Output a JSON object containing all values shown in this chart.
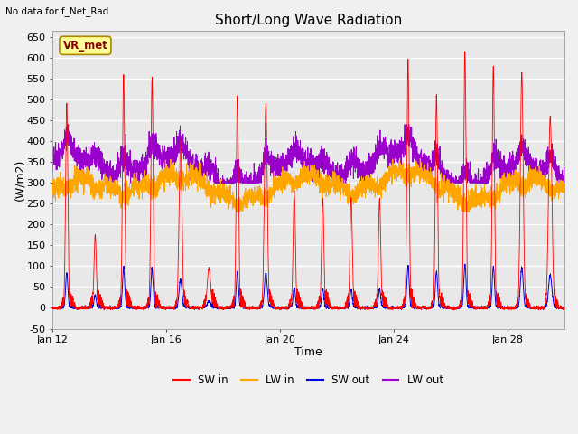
{
  "title": "Short/Long Wave Radiation",
  "xlabel": "Time",
  "ylabel": "(W/m2)",
  "top_left_text": "No data for f_Net_Rad",
  "legend_label_text": "VR_met",
  "legend_entries": [
    "SW in",
    "LW in",
    "SW out",
    "LW out"
  ],
  "sw_in_color": "#FF0000",
  "lw_in_color": "#FFA500",
  "sw_out_color": "#0000DD",
  "lw_out_color": "#9900CC",
  "ylim": [
    -50,
    665
  ],
  "yticks": [
    -50,
    0,
    50,
    100,
    150,
    200,
    250,
    300,
    350,
    400,
    450,
    500,
    550,
    600,
    650
  ],
  "fig_bg_color": "#F0F0F0",
  "plot_bg_color": "#E8E8E8",
  "grid_color": "#FFFFFF",
  "num_points": 4320,
  "days": 18
}
